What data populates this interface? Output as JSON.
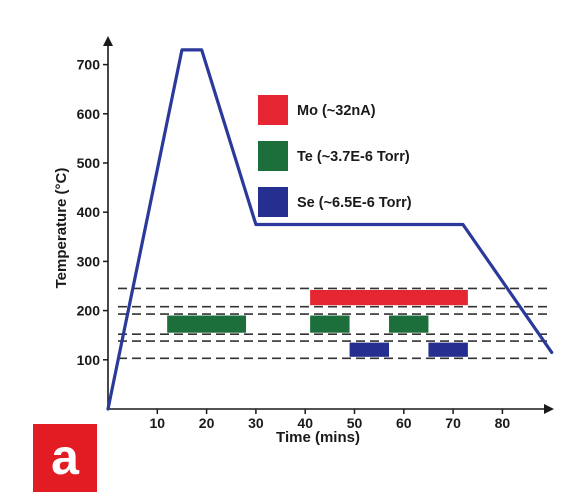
{
  "panel_label": "a",
  "colors": {
    "temperature_line": "#2b3a9a",
    "Mo": "#e52531",
    "Te": "#1c6e3a",
    "Se": "#252f8f",
    "dashed": "#333333",
    "panel": "#e31b23"
  },
  "chart_data": {
    "type": "line",
    "xlabel": "Time (mins)",
    "ylabel": "Temperature (°C)",
    "xlim": [
      0,
      90
    ],
    "ylim": [
      0,
      750
    ],
    "x_ticks": [
      10,
      20,
      30,
      40,
      50,
      60,
      70,
      80
    ],
    "y_ticks": [
      100,
      200,
      300,
      400,
      500,
      600,
      700
    ],
    "grid": false,
    "series": [
      {
        "values_xy": [
          [
            0,
            0
          ],
          [
            15,
            730
          ],
          [
            19,
            730
          ],
          [
            30,
            375
          ],
          [
            72,
            375
          ],
          [
            90,
            115
          ]
        ]
      }
    ],
    "legend": {
      "placement": "top-center",
      "entries": [
        {
          "label": "Mo (~32nA)",
          "color": "Mo"
        },
        {
          "label": "Te (~3.7E-6 Torr)",
          "color": "Te"
        },
        {
          "label": "Se (~6.5E-6 Torr)",
          "color": "Se"
        }
      ]
    },
    "dashed_levels": [
      245,
      208,
      193,
      152,
      138,
      103
    ],
    "flux_bars": [
      {
        "source": "Mo",
        "x_start": 41,
        "x_end": 73,
        "y_low": 208,
        "y_high": 245
      },
      {
        "source": "Te",
        "x_start": 12,
        "x_end": 28,
        "y_low": 152,
        "y_high": 193
      },
      {
        "source": "Te",
        "x_start": 41,
        "x_end": 49,
        "y_low": 152,
        "y_high": 193
      },
      {
        "source": "Te",
        "x_start": 57,
        "x_end": 65,
        "y_low": 152,
        "y_high": 193
      },
      {
        "source": "Se",
        "x_start": 49,
        "x_end": 57,
        "y_low": 103,
        "y_high": 138
      },
      {
        "source": "Se",
        "x_start": 65,
        "x_end": 73,
        "y_low": 103,
        "y_high": 138
      }
    ]
  }
}
